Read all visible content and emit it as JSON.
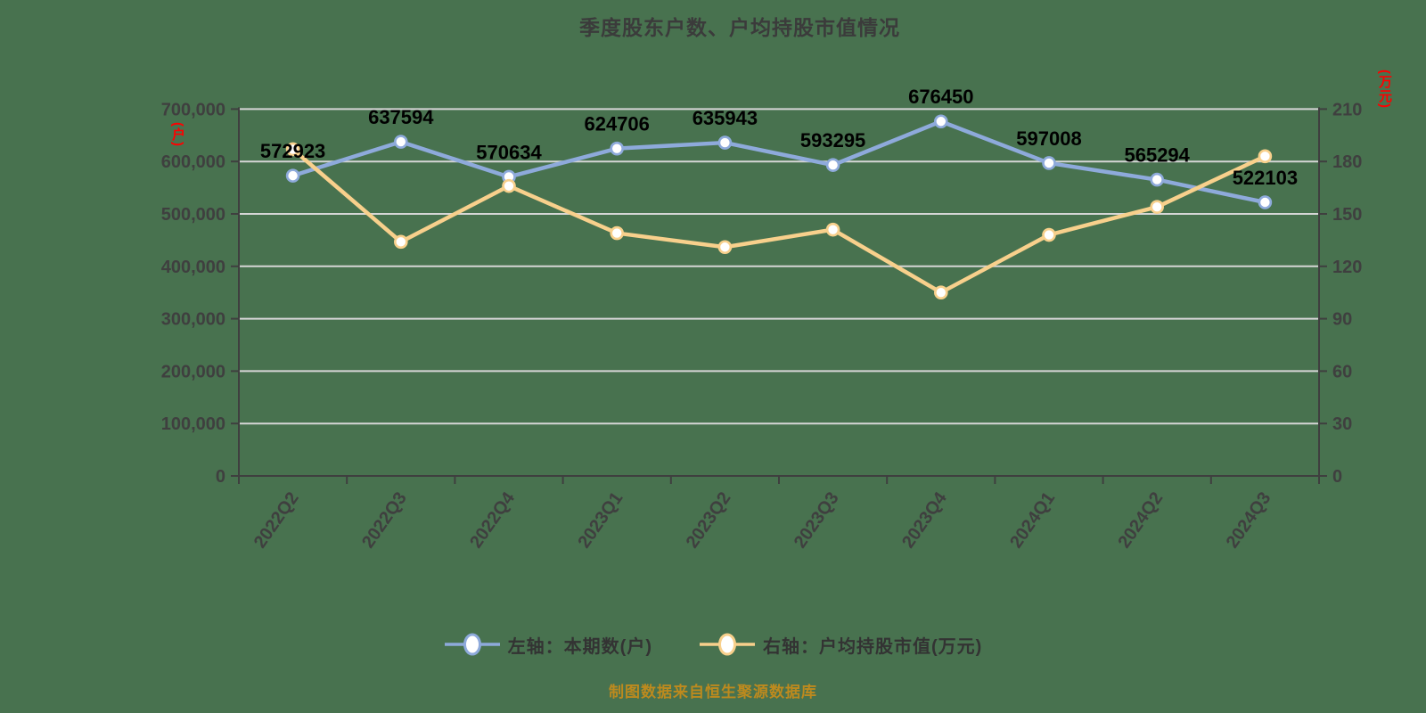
{
  "title": "季度股东户数、户均持股市值情况",
  "footer": "制图数据来自恒生聚源数据库",
  "colors": {
    "background": "#48724F",
    "title": "#3B3B3B",
    "axis": "#3F3F3F",
    "grid": "#D6D6D6",
    "tick_label": "#3F3F3F",
    "data_label": "#000000",
    "unit_label": "#FF0000",
    "footer": "#BD8A1E",
    "legend_text": "#333333",
    "series_left": "#8EAADB",
    "series_right": "#F8D08C",
    "marker_fill": "#FFFFFF"
  },
  "left_axis": {
    "unit": "(户)",
    "min": 0,
    "max": 700000,
    "step": 100000,
    "tick_labels": [
      "700,000",
      "600,000",
      "500,000",
      "400,000",
      "300,000",
      "200,000",
      "100,000",
      "0"
    ]
  },
  "right_axis": {
    "unit": "(万元)",
    "min": 0,
    "max": 210,
    "step": 30,
    "tick_labels": [
      "210",
      "180",
      "150",
      "120",
      "90",
      "60",
      "30",
      "0"
    ]
  },
  "legend": {
    "items": [
      {
        "label": "左轴：本期数(户)"
      },
      {
        "label": "右轴：户均持股市值(万元)"
      }
    ]
  },
  "chart_data": {
    "type": "line",
    "title": "季度股东户数、户均持股市值情况",
    "categories": [
      "2022Q2",
      "2022Q3",
      "2022Q4",
      "2023Q1",
      "2023Q2",
      "2023Q3",
      "2023Q4",
      "2024Q1",
      "2024Q2",
      "2024Q3"
    ],
    "series": [
      {
        "name": "左轴：本期数(户)",
        "axis": "left",
        "color": "#8EAADB",
        "values": [
          572923,
          637594,
          570634,
          624706,
          635943,
          593295,
          676450,
          597008,
          565294,
          522103
        ],
        "point_labels": [
          "572923",
          "637594",
          "570634",
          "624706",
          "635943",
          "593295",
          "676450",
          "597008",
          "565294",
          "522103"
        ]
      },
      {
        "name": "右轴：户均持股市值(万元)",
        "axis": "right",
        "color": "#F8D08C",
        "values": [
          187,
          134,
          166,
          139,
          131,
          141,
          105,
          138,
          154,
          183
        ],
        "point_labels": []
      }
    ],
    "left_ylim": [
      0,
      700000
    ],
    "right_ylim": [
      0,
      210
    ],
    "grid": true,
    "legend_position": "bottom"
  }
}
